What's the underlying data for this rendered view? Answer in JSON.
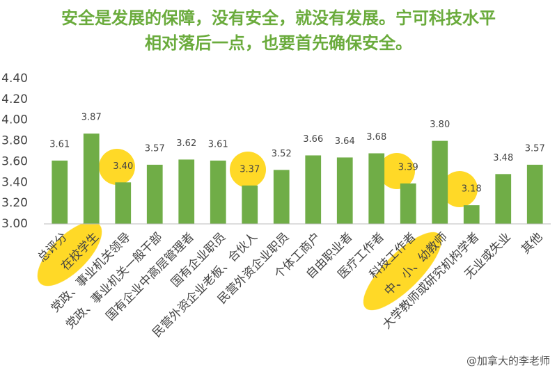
{
  "chart_data": {
    "type": "bar",
    "title": "安全是发展的保障，没有安全，就没有发展。宁可科技水平相对落后一点，也要首先确保安全。",
    "categories": [
      "总评分",
      "在校学生",
      "党政、事业机关领导",
      "党政、事业机关一般干部",
      "国有企业中高层管理者",
      "国有企业职员",
      "民营外资企业老板、合伙人",
      "民营外资企业职员",
      "个体工商户",
      "自由职业者",
      "医疗工作者",
      "科技工作者",
      "中、小、幼教师",
      "大学教师或研究机构学者",
      "无业或失业",
      "其他"
    ],
    "values": [
      3.61,
      3.87,
      3.4,
      3.57,
      3.62,
      3.61,
      3.37,
      3.52,
      3.66,
      3.64,
      3.68,
      3.39,
      3.8,
      3.18,
      3.48,
      3.57
    ],
    "value_labels": [
      "3.61",
      "3.87",
      "3.40",
      "3.57",
      "3.62",
      "3.61",
      "3.37",
      "3.52",
      "3.66",
      "3.64",
      "3.68",
      "3.39",
      "3.80",
      "3.18",
      "3.48",
      "3.57"
    ],
    "color": "#70ad47",
    "ylim": [
      3.0,
      4.4
    ],
    "yticks": [
      {
        "value": 3.0,
        "label": "3.00"
      },
      {
        "value": 3.2,
        "label": "3.20"
      },
      {
        "value": 3.4,
        "label": "3.40"
      },
      {
        "value": 3.6,
        "label": "3.60"
      },
      {
        "value": 3.8,
        "label": "3.80"
      },
      {
        "value": 4.0,
        "label": "4.00"
      },
      {
        "value": 4.2,
        "label": "4.20"
      },
      {
        "value": 4.4,
        "label": "4.40"
      }
    ],
    "grid": false,
    "watermark": "@加拿大的李老师"
  }
}
